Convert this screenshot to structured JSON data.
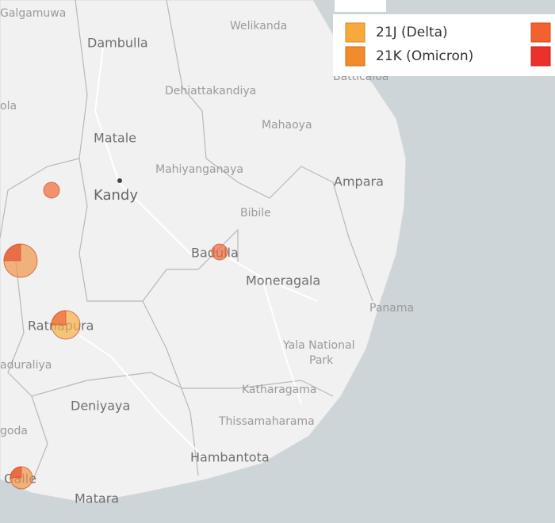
{
  "legend": [
    {
      "label": "21J (Delta)",
      "color": "#f7a93b"
    },
    {
      "label": "21K (Omicron)",
      "color": "#f28b2c"
    }
  ],
  "labels": [
    "Galgamuwa",
    "Welikanda",
    "Dambulla",
    "Batticaloa",
    "ola",
    "Dehiattakandiya",
    "Mahaoya",
    "Matale",
    "Mahiyanganaya",
    "Kandy",
    "Ampara",
    "Bibile",
    "Badulla",
    "Moneragala",
    "Panama",
    "Ratnapura",
    "Yala National",
    "Park",
    "aduraliya",
    "Katharagama",
    "Deniyaya",
    "Thissamaharama",
    "goda",
    "Hambantota",
    "Galle",
    "Matara"
  ]
}
